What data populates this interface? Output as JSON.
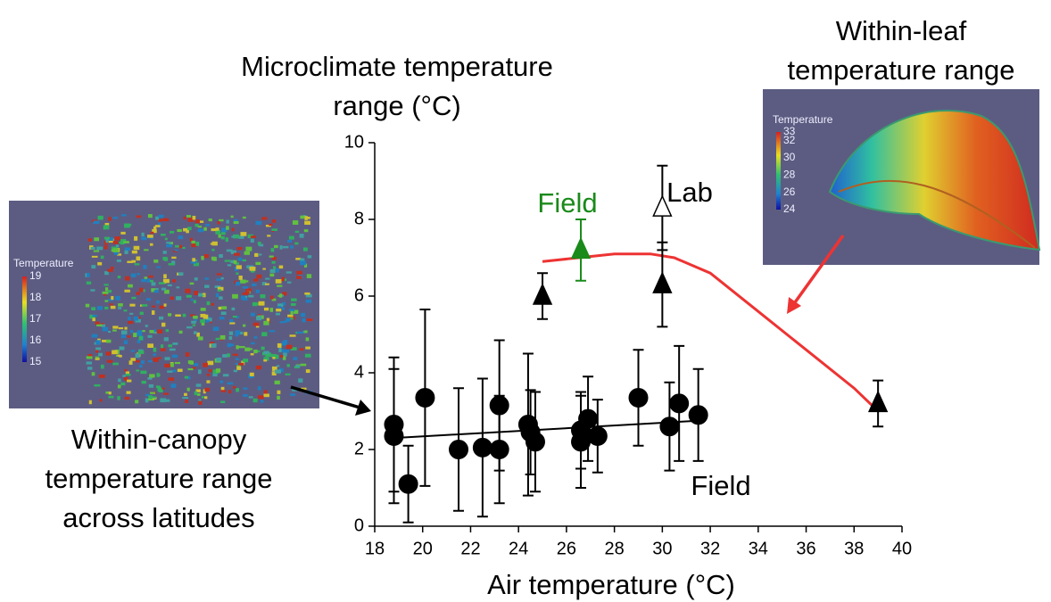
{
  "chart_data": {
    "type": "scatter",
    "y_label": [
      "Microclimate temperature",
      "range (°C)"
    ],
    "x_label": "Air temperature (°C)",
    "xlim": [
      18,
      40
    ],
    "xticks": [
      18,
      20,
      22,
      24,
      26,
      28,
      30,
      32,
      34,
      36,
      38,
      40
    ],
    "ylim": [
      0,
      10
    ],
    "yticks": [
      0,
      2,
      4,
      6,
      8,
      10
    ],
    "grid": false,
    "series": [
      {
        "marker": "circle",
        "color": "#000000",
        "filled": true,
        "x": [
          18.8,
          18.8,
          19.4,
          20.1,
          21.5,
          22.5,
          23.2,
          23.2,
          24.4,
          24.5,
          24.7,
          26.6,
          26.6,
          26.9,
          27.3,
          29.0,
          30.3,
          30.7,
          31.5
        ],
        "values": [
          2.65,
          2.35,
          1.1,
          3.35,
          2.0,
          2.05,
          3.15,
          2.0,
          2.65,
          2.45,
          2.2,
          2.5,
          2.2,
          2.8,
          2.35,
          3.35,
          2.6,
          3.2,
          2.9
        ],
        "errors": [
          1.75,
          1.75,
          1.0,
          2.3,
          1.6,
          1.8,
          1.7,
          1.4,
          1.85,
          1.1,
          1.3,
          1.0,
          1.2,
          1.1,
          0.95,
          1.25,
          1.15,
          1.5,
          1.2
        ]
      },
      {
        "marker": "triangle",
        "color": "#000000",
        "filled": true,
        "x": [
          25,
          30,
          39
        ],
        "values": [
          6.0,
          6.3,
          3.2
        ],
        "errors": [
          0.6,
          1.1,
          0.6
        ]
      },
      {
        "marker": "triangle",
        "color": "#1a8a1a",
        "filled": true,
        "x": [
          26.6
        ],
        "values": [
          7.2
        ],
        "errors": [
          0.8
        ]
      },
      {
        "marker": "triangle",
        "color": "#000000",
        "filled": false,
        "x": [
          30
        ],
        "values": [
          8.3
        ],
        "errors": [
          1.1
        ]
      }
    ],
    "lines": [
      {
        "color": "#000000",
        "x": [
          18.8,
          31.5
        ],
        "values": [
          2.3,
          2.75
        ]
      },
      {
        "color": "#ee3333",
        "x": [
          25,
          26.5,
          28,
          29.5,
          30.5,
          32,
          34,
          36,
          38,
          39
        ],
        "values": [
          6.9,
          7.0,
          7.1,
          7.1,
          7.0,
          6.6,
          5.6,
          4.6,
          3.6,
          3.0
        ]
      }
    ],
    "annotations": [
      {
        "text": "Field",
        "color": "#1a8a1a"
      },
      {
        "text": "Lab",
        "color": "#000000"
      },
      {
        "text": "Field",
        "color": "#000000"
      }
    ],
    "captions": [
      [
        "Within-canopy",
        "temperature range",
        "across latitudes"
      ],
      [
        "Within-leaf",
        "temperature range"
      ]
    ],
    "insets": [
      {
        "title": "Temperature",
        "clim": [
          15,
          19
        ],
        "ticks": [
          19,
          18,
          17,
          16,
          15
        ]
      },
      {
        "title": "Temperature",
        "clim": [
          24,
          33
        ],
        "ticks": [
          33,
          32,
          30,
          28,
          26,
          24
        ]
      }
    ]
  }
}
